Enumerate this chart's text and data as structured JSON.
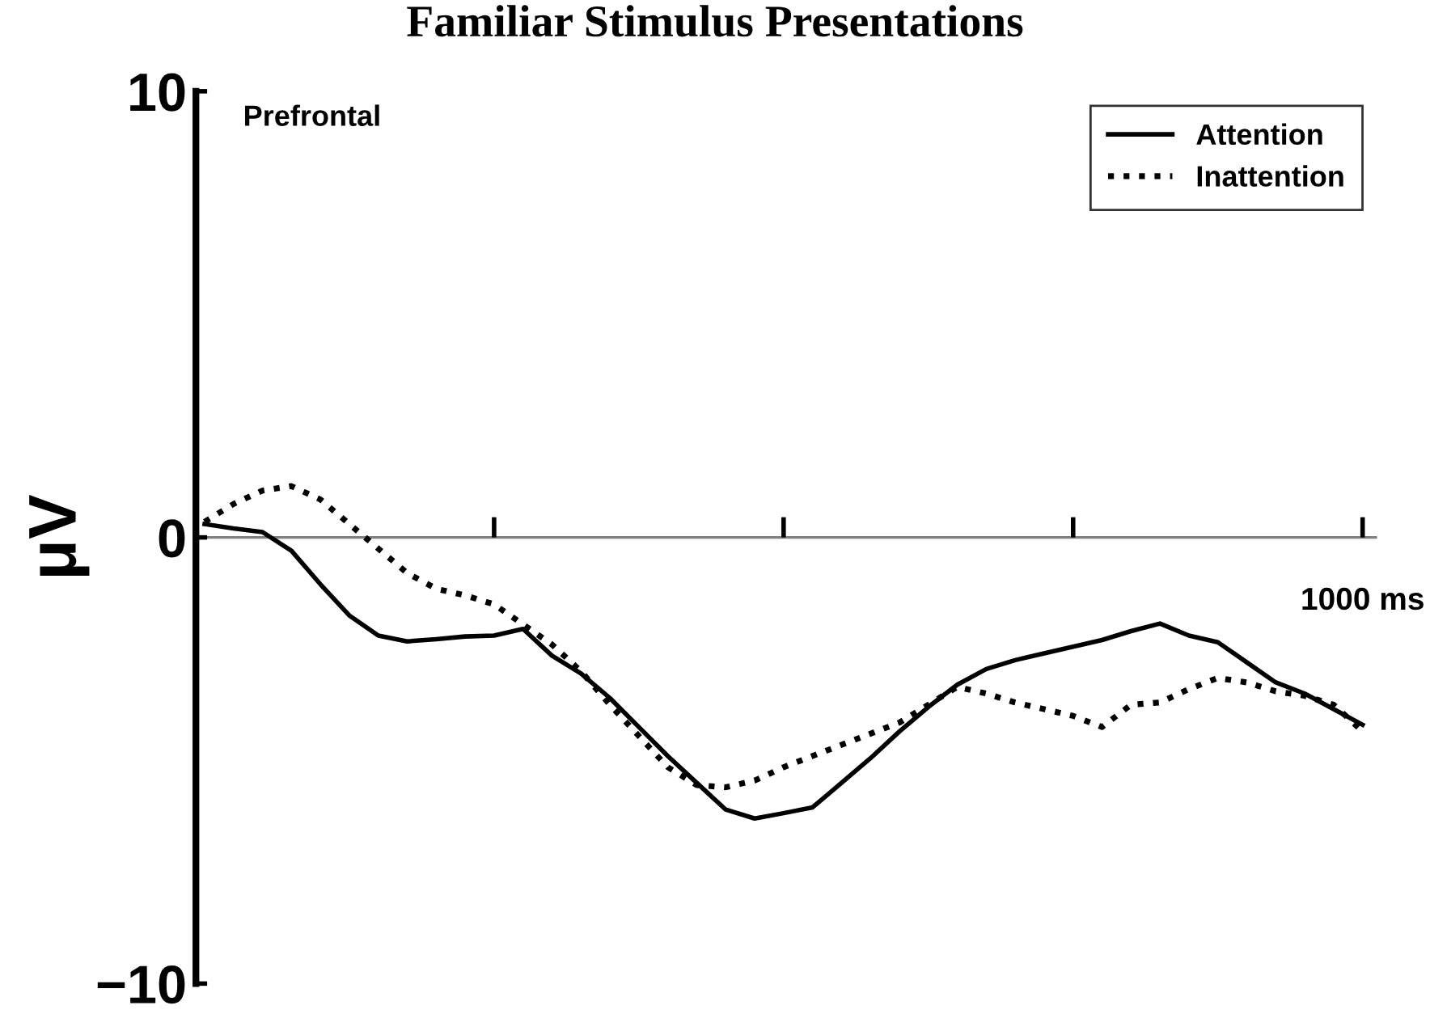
{
  "chart_data": {
    "type": "line",
    "title": "Familiar Stimulus Presentations",
    "ylabel": "μV",
    "annotations": [
      "Prefrontal",
      "1000 ms"
    ],
    "categories": [
      null,
      null,
      null,
      null,
      null,
      null,
      null,
      null,
      null,
      null,
      null,
      null,
      null,
      null,
      null,
      null,
      null,
      null,
      null,
      null,
      null,
      null,
      null,
      null,
      null,
      null,
      null,
      null,
      null,
      null,
      null,
      null,
      null,
      null,
      null,
      null,
      null,
      null,
      null,
      null,
      null
    ],
    "ylim": [
      -10,
      10
    ],
    "yticks": [
      {
        "value": 10,
        "label": "10"
      },
      {
        "value": 0,
        "label": "0"
      },
      {
        "value": -10,
        "label": "−10"
      }
    ],
    "grid": false,
    "ref_lines": [
      {
        "axis": "y",
        "value": 0,
        "color": "#808080",
        "line_style": "solid"
      }
    ],
    "legend": "top right",
    "marker": "none",
    "series": [
      {
        "name": "Attention",
        "color": "#000000",
        "line_style": "solid",
        "values": [
          0.3,
          0.2,
          0.12,
          -0.3,
          -1.05,
          -1.75,
          -2.2,
          -2.33,
          -2.28,
          -2.22,
          -2.2,
          -2.05,
          -2.65,
          -3.05,
          -3.6,
          -4.25,
          -4.9,
          -5.5,
          -6.1,
          -6.3,
          -6.18,
          -6.05,
          -5.5,
          -4.95,
          -4.35,
          -3.8,
          -3.3,
          -2.95,
          -2.75,
          -2.6,
          -2.45,
          -2.3,
          -2.1,
          -1.93,
          -2.2,
          -2.35,
          -2.8,
          -3.25,
          -3.5,
          -3.85,
          -4.2
        ]
      },
      {
        "name": "Inattention",
        "color": "#000000",
        "line_style": "dotted",
        "values": [
          0.35,
          0.75,
          1.05,
          1.15,
          0.85,
          0.3,
          -0.25,
          -0.8,
          -1.15,
          -1.3,
          -1.5,
          -1.95,
          -2.4,
          -3.0,
          -3.75,
          -4.45,
          -5.15,
          -5.55,
          -5.6,
          -5.45,
          -5.15,
          -4.9,
          -4.65,
          -4.4,
          -4.15,
          -3.75,
          -3.35,
          -3.5,
          -3.7,
          -3.85,
          -4.0,
          -4.25,
          -3.75,
          -3.7,
          -3.4,
          -3.15,
          -3.25,
          -3.45,
          -3.55,
          -3.75,
          -4.35
        ]
      }
    ]
  }
}
